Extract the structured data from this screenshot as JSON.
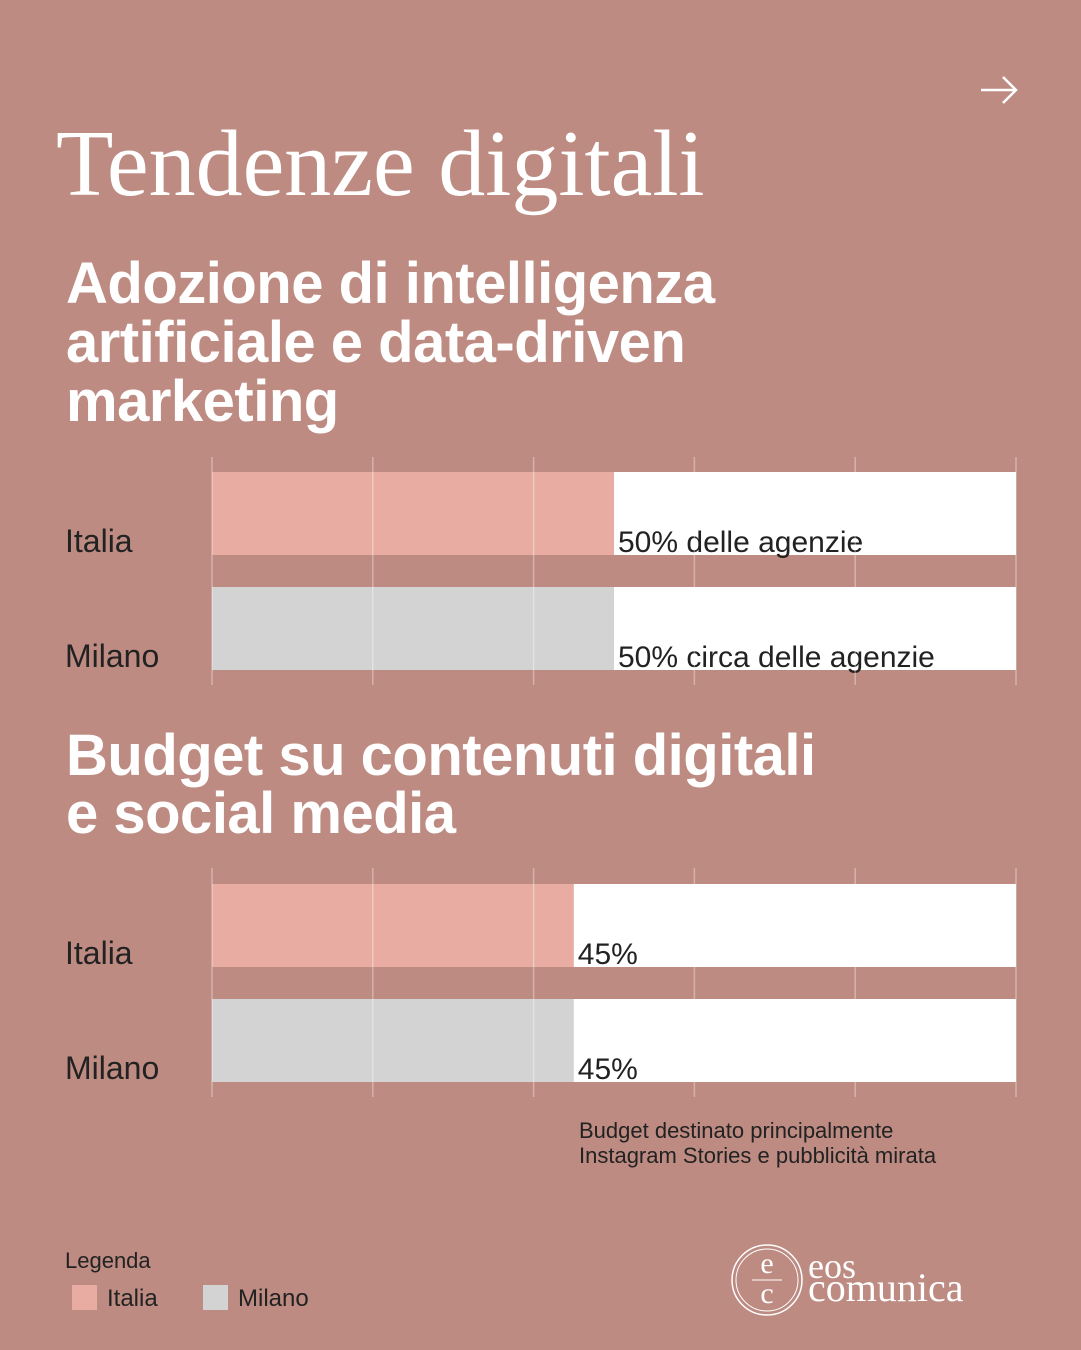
{
  "title": "Tendenze digitali",
  "chart_data": [
    {
      "type": "bar",
      "orientation": "horizontal",
      "title": [
        "Adozione di intelligenza",
        "artificiale e data-driven",
        "marketing"
      ],
      "categories": [
        "Italia",
        "Milano"
      ],
      "values": [
        50,
        50
      ],
      "value_labels": [
        "50% delle agenzie",
        "50% circa delle agenzie"
      ],
      "colors": [
        "#e8aca2",
        "#d3d3d3"
      ],
      "xlim": [
        0,
        100
      ],
      "xticks": [
        0,
        20,
        40,
        60,
        80,
        100
      ],
      "grid": true
    },
    {
      "type": "bar",
      "orientation": "horizontal",
      "title": [
        "Budget su contenuti digitali",
        "e social media"
      ],
      "categories": [
        "Italia",
        "Milano"
      ],
      "values": [
        45,
        45
      ],
      "value_labels": [
        "45%",
        "45%"
      ],
      "colors": [
        "#e8aca2",
        "#d3d3d3"
      ],
      "xlim": [
        0,
        100
      ],
      "xticks": [
        0,
        20,
        40,
        60,
        80,
        100
      ],
      "grid": true,
      "note": [
        "Budget destinato principalmente",
        "Instagram Stories e pubblicità mirata"
      ]
    }
  ],
  "legend": {
    "title": "Legenda",
    "items": [
      {
        "label": "Italia",
        "color": "#e8aca2"
      },
      {
        "label": "Milano",
        "color": "#d3d3d3"
      }
    ]
  },
  "logo": {
    "mark": [
      "e",
      "c"
    ],
    "name": [
      "eos",
      "comunica"
    ]
  }
}
